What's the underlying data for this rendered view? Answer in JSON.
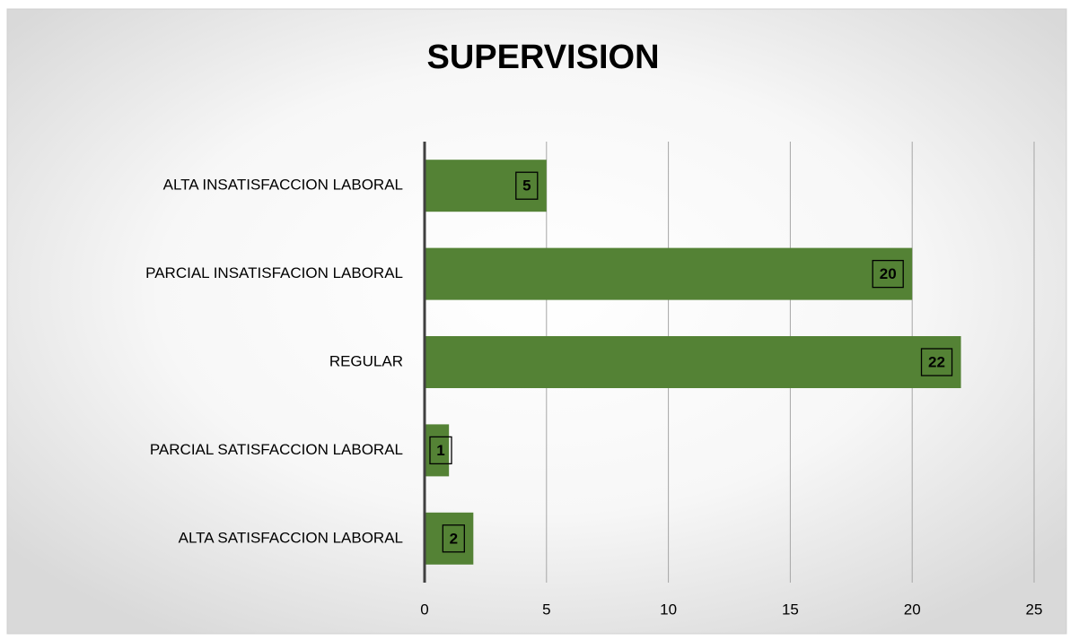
{
  "chart_data": {
    "type": "bar",
    "orientation": "horizontal",
    "title": "SUPERVISION",
    "categories": [
      "ALTA INSATISFACCION LABORAL",
      "PARCIAL INSATISFACION LABORAL",
      "REGULAR",
      "PARCIAL SATISFACCION LABORAL",
      "ALTA SATISFACCION LABORAL"
    ],
    "values": [
      5,
      20,
      22,
      1,
      2
    ],
    "color": "#548235",
    "xlim": [
      0,
      25
    ],
    "xticks": [
      0,
      5,
      10,
      15,
      20,
      25
    ],
    "grid": true
  }
}
